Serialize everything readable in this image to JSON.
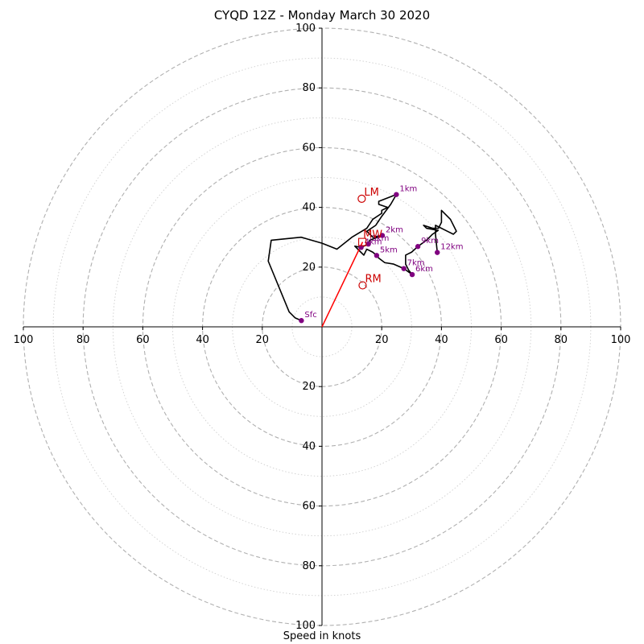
{
  "chart_data": {
    "type": "hodograph",
    "title": "CYQD 12Z - Monday March 30 2020",
    "xlabel": "Speed in knots",
    "range": [
      -100,
      100
    ],
    "ring_step": 10,
    "grid": true,
    "axis_tick_labels": [
      "100",
      "80",
      "60",
      "40",
      "20",
      "20",
      "40",
      "60",
      "80",
      "100"
    ],
    "hodograph_trace": [
      [
        -6.9,
        2.1
      ],
      [
        -9,
        3
      ],
      [
        -11,
        5
      ],
      [
        -18,
        22
      ],
      [
        -17,
        29
      ],
      [
        -7,
        30
      ],
      [
        0,
        28
      ],
      [
        5,
        26
      ],
      [
        10,
        30
      ],
      [
        15,
        33
      ],
      [
        17,
        36
      ],
      [
        20,
        38
      ],
      [
        20,
        39
      ],
      [
        22,
        40
      ],
      [
        19,
        41
      ],
      [
        19,
        42
      ],
      [
        24.9,
        44.3
      ],
      [
        23,
        41
      ],
      [
        20,
        37
      ],
      [
        18,
        34
      ],
      [
        15,
        32
      ],
      [
        17,
        30
      ],
      [
        20.2,
        30.6
      ],
      [
        16,
        29
      ],
      [
        15.5,
        27.7
      ],
      [
        13.1,
        26.6
      ],
      [
        11,
        27
      ],
      [
        13,
        25
      ],
      [
        14,
        24
      ],
      [
        15,
        26
      ],
      [
        17,
        25
      ],
      [
        18.3,
        23.9
      ],
      [
        19,
        23
      ],
      [
        21,
        21.5
      ],
      [
        24,
        21
      ],
      [
        27.4,
        19.5
      ],
      [
        30.2,
        17.5
      ],
      [
        29,
        19
      ],
      [
        28,
        21
      ],
      [
        28,
        24
      ],
      [
        30,
        25
      ],
      [
        32.1,
        26.9
      ],
      [
        35,
        29
      ],
      [
        37,
        31
      ],
      [
        38.9,
        32.3
      ],
      [
        35,
        33
      ],
      [
        34,
        34
      ],
      [
        34,
        34
      ],
      [
        37,
        33
      ],
      [
        39,
        33
      ],
      [
        40,
        35
      ],
      [
        40,
        38
      ],
      [
        40,
        39
      ],
      [
        43,
        36
      ],
      [
        45,
        32
      ],
      [
        44,
        31
      ],
      [
        42,
        32
      ],
      [
        38,
        34
      ],
      [
        38,
        31
      ],
      [
        38.6,
        24.9
      ]
    ],
    "height_markers": [
      {
        "label": "Sfc",
        "u": -6.9,
        "v": 2.1
      },
      {
        "label": "1km",
        "u": 24.9,
        "v": 44.3
      },
      {
        "label": "2km",
        "u": 20.2,
        "v": 30.6
      },
      {
        "label": "3km",
        "u": 15.5,
        "v": 27.7
      },
      {
        "label": "4km",
        "u": 13.1,
        "v": 26.6
      },
      {
        "label": "5km",
        "u": 18.3,
        "v": 23.9
      },
      {
        "label": "6km",
        "u": 30.2,
        "v": 17.5
      },
      {
        "label": "7km",
        "u": 27.4,
        "v": 19.5
      },
      {
        "label": "9km",
        "u": 32.1,
        "v": 26.9
      },
      {
        "label": "12km",
        "u": 38.6,
        "v": 24.9
      }
    ],
    "storm_motion": {
      "LM": {
        "label": "LM",
        "u": 13.3,
        "v": 42.9
      },
      "RM": {
        "label": "RM",
        "u": 13.6,
        "v": 13.9
      },
      "MW": {
        "label": "MW",
        "u": 13.5,
        "v": 28.4
      }
    },
    "storm_vector": {
      "u": 13.6,
      "v": 28.4
    },
    "colors": {
      "trace": "#000000",
      "markers": "#800080",
      "storm": "#cc0000",
      "vector": "#ff0000",
      "grid": "#b0b0b0"
    }
  }
}
